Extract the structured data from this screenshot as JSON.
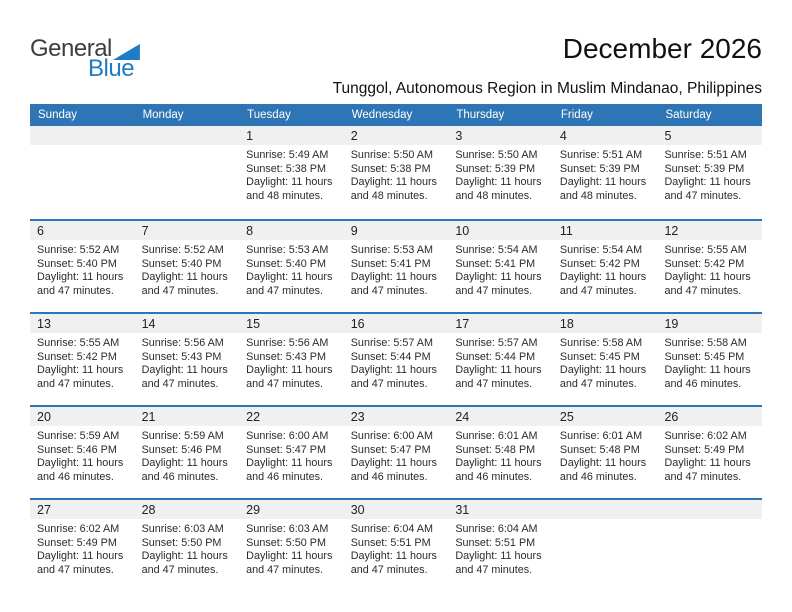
{
  "logo": {
    "text_black": "General",
    "text_blue": "Blue"
  },
  "title": "December 2026",
  "subtitle": "Tunggol, Autonomous Region in Muslim Mindanao, Philippines",
  "colors": {
    "header_blue": "#2e75b6",
    "separator_blue": "#2e75b6",
    "date_band_gray": "#f0f0f0",
    "logo_blue": "#1e7bc4",
    "header_text": "#ffffff",
    "body_text": "#2b2b2b"
  },
  "calendar": {
    "weekdays": [
      "Sunday",
      "Monday",
      "Tuesday",
      "Wednesday",
      "Thursday",
      "Friday",
      "Saturday"
    ],
    "weeks": [
      [
        null,
        null,
        {
          "date": "1",
          "lines": [
            "Sunrise: 5:49 AM",
            "Sunset: 5:38 PM",
            "Daylight: 11 hours",
            "and 48 minutes."
          ]
        },
        {
          "date": "2",
          "lines": [
            "Sunrise: 5:50 AM",
            "Sunset: 5:38 PM",
            "Daylight: 11 hours",
            "and 48 minutes."
          ]
        },
        {
          "date": "3",
          "lines": [
            "Sunrise: 5:50 AM",
            "Sunset: 5:39 PM",
            "Daylight: 11 hours",
            "and 48 minutes."
          ]
        },
        {
          "date": "4",
          "lines": [
            "Sunrise: 5:51 AM",
            "Sunset: 5:39 PM",
            "Daylight: 11 hours",
            "and 48 minutes."
          ]
        },
        {
          "date": "5",
          "lines": [
            "Sunrise: 5:51 AM",
            "Sunset: 5:39 PM",
            "Daylight: 11 hours",
            "and 47 minutes."
          ]
        }
      ],
      [
        {
          "date": "6",
          "lines": [
            "Sunrise: 5:52 AM",
            "Sunset: 5:40 PM",
            "Daylight: 11 hours",
            "and 47 minutes."
          ]
        },
        {
          "date": "7",
          "lines": [
            "Sunrise: 5:52 AM",
            "Sunset: 5:40 PM",
            "Daylight: 11 hours",
            "and 47 minutes."
          ]
        },
        {
          "date": "8",
          "lines": [
            "Sunrise: 5:53 AM",
            "Sunset: 5:40 PM",
            "Daylight: 11 hours",
            "and 47 minutes."
          ]
        },
        {
          "date": "9",
          "lines": [
            "Sunrise: 5:53 AM",
            "Sunset: 5:41 PM",
            "Daylight: 11 hours",
            "and 47 minutes."
          ]
        },
        {
          "date": "10",
          "lines": [
            "Sunrise: 5:54 AM",
            "Sunset: 5:41 PM",
            "Daylight: 11 hours",
            "and 47 minutes."
          ]
        },
        {
          "date": "11",
          "lines": [
            "Sunrise: 5:54 AM",
            "Sunset: 5:42 PM",
            "Daylight: 11 hours",
            "and 47 minutes."
          ]
        },
        {
          "date": "12",
          "lines": [
            "Sunrise: 5:55 AM",
            "Sunset: 5:42 PM",
            "Daylight: 11 hours",
            "and 47 minutes."
          ]
        }
      ],
      [
        {
          "date": "13",
          "lines": [
            "Sunrise: 5:55 AM",
            "Sunset: 5:42 PM",
            "Daylight: 11 hours",
            "and 47 minutes."
          ]
        },
        {
          "date": "14",
          "lines": [
            "Sunrise: 5:56 AM",
            "Sunset: 5:43 PM",
            "Daylight: 11 hours",
            "and 47 minutes."
          ]
        },
        {
          "date": "15",
          "lines": [
            "Sunrise: 5:56 AM",
            "Sunset: 5:43 PM",
            "Daylight: 11 hours",
            "and 47 minutes."
          ]
        },
        {
          "date": "16",
          "lines": [
            "Sunrise: 5:57 AM",
            "Sunset: 5:44 PM",
            "Daylight: 11 hours",
            "and 47 minutes."
          ]
        },
        {
          "date": "17",
          "lines": [
            "Sunrise: 5:57 AM",
            "Sunset: 5:44 PM",
            "Daylight: 11 hours",
            "and 47 minutes."
          ]
        },
        {
          "date": "18",
          "lines": [
            "Sunrise: 5:58 AM",
            "Sunset: 5:45 PM",
            "Daylight: 11 hours",
            "and 47 minutes."
          ]
        },
        {
          "date": "19",
          "lines": [
            "Sunrise: 5:58 AM",
            "Sunset: 5:45 PM",
            "Daylight: 11 hours",
            "and 46 minutes."
          ]
        }
      ],
      [
        {
          "date": "20",
          "lines": [
            "Sunrise: 5:59 AM",
            "Sunset: 5:46 PM",
            "Daylight: 11 hours",
            "and 46 minutes."
          ]
        },
        {
          "date": "21",
          "lines": [
            "Sunrise: 5:59 AM",
            "Sunset: 5:46 PM",
            "Daylight: 11 hours",
            "and 46 minutes."
          ]
        },
        {
          "date": "22",
          "lines": [
            "Sunrise: 6:00 AM",
            "Sunset: 5:47 PM",
            "Daylight: 11 hours",
            "and 46 minutes."
          ]
        },
        {
          "date": "23",
          "lines": [
            "Sunrise: 6:00 AM",
            "Sunset: 5:47 PM",
            "Daylight: 11 hours",
            "and 46 minutes."
          ]
        },
        {
          "date": "24",
          "lines": [
            "Sunrise: 6:01 AM",
            "Sunset: 5:48 PM",
            "Daylight: 11 hours",
            "and 46 minutes."
          ]
        },
        {
          "date": "25",
          "lines": [
            "Sunrise: 6:01 AM",
            "Sunset: 5:48 PM",
            "Daylight: 11 hours",
            "and 46 minutes."
          ]
        },
        {
          "date": "26",
          "lines": [
            "Sunrise: 6:02 AM",
            "Sunset: 5:49 PM",
            "Daylight: 11 hours",
            "and 47 minutes."
          ]
        }
      ],
      [
        {
          "date": "27",
          "lines": [
            "Sunrise: 6:02 AM",
            "Sunset: 5:49 PM",
            "Daylight: 11 hours",
            "and 47 minutes."
          ]
        },
        {
          "date": "28",
          "lines": [
            "Sunrise: 6:03 AM",
            "Sunset: 5:50 PM",
            "Daylight: 11 hours",
            "and 47 minutes."
          ]
        },
        {
          "date": "29",
          "lines": [
            "Sunrise: 6:03 AM",
            "Sunset: 5:50 PM",
            "Daylight: 11 hours",
            "and 47 minutes."
          ]
        },
        {
          "date": "30",
          "lines": [
            "Sunrise: 6:04 AM",
            "Sunset: 5:51 PM",
            "Daylight: 11 hours",
            "and 47 minutes."
          ]
        },
        {
          "date": "31",
          "lines": [
            "Sunrise: 6:04 AM",
            "Sunset: 5:51 PM",
            "Daylight: 11 hours",
            "and 47 minutes."
          ]
        },
        null,
        null
      ]
    ]
  }
}
